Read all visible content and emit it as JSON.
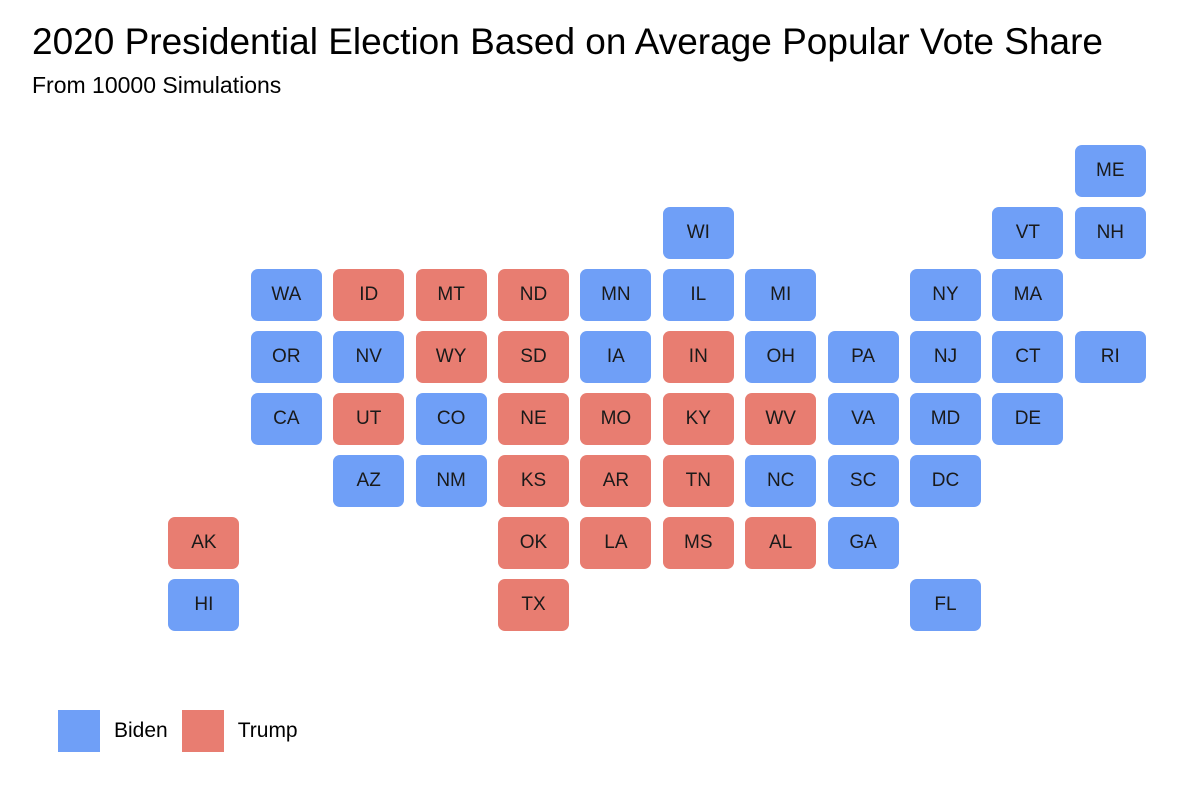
{
  "title": "2020 Presidential Election Based on Average Popular Vote Share",
  "subtitle": "From 10000 Simulations",
  "colors": {
    "Biden": "#6f9ff7",
    "Trump": "#e87d71"
  },
  "legend": [
    {
      "key": "Biden",
      "label": "Biden"
    },
    {
      "key": "Trump",
      "label": "Trump"
    }
  ],
  "states": [
    {
      "abbr": "ME",
      "winner": "Biden"
    },
    {
      "abbr": "WI",
      "winner": "Biden"
    },
    {
      "abbr": "VT",
      "winner": "Biden"
    },
    {
      "abbr": "NH",
      "winner": "Biden"
    },
    {
      "abbr": "WA",
      "winner": "Biden"
    },
    {
      "abbr": "ID",
      "winner": "Trump"
    },
    {
      "abbr": "MT",
      "winner": "Trump"
    },
    {
      "abbr": "ND",
      "winner": "Trump"
    },
    {
      "abbr": "MN",
      "winner": "Biden"
    },
    {
      "abbr": "IL",
      "winner": "Biden"
    },
    {
      "abbr": "MI",
      "winner": "Biden"
    },
    {
      "abbr": "NY",
      "winner": "Biden"
    },
    {
      "abbr": "MA",
      "winner": "Biden"
    },
    {
      "abbr": "OR",
      "winner": "Biden"
    },
    {
      "abbr": "NV",
      "winner": "Biden"
    },
    {
      "abbr": "WY",
      "winner": "Trump"
    },
    {
      "abbr": "SD",
      "winner": "Trump"
    },
    {
      "abbr": "IA",
      "winner": "Biden"
    },
    {
      "abbr": "IN",
      "winner": "Trump"
    },
    {
      "abbr": "OH",
      "winner": "Biden"
    },
    {
      "abbr": "PA",
      "winner": "Biden"
    },
    {
      "abbr": "NJ",
      "winner": "Biden"
    },
    {
      "abbr": "CT",
      "winner": "Biden"
    },
    {
      "abbr": "RI",
      "winner": "Biden"
    },
    {
      "abbr": "CA",
      "winner": "Biden"
    },
    {
      "abbr": "UT",
      "winner": "Trump"
    },
    {
      "abbr": "CO",
      "winner": "Biden"
    },
    {
      "abbr": "NE",
      "winner": "Trump"
    },
    {
      "abbr": "MO",
      "winner": "Trump"
    },
    {
      "abbr": "KY",
      "winner": "Trump"
    },
    {
      "abbr": "WV",
      "winner": "Trump"
    },
    {
      "abbr": "VA",
      "winner": "Biden"
    },
    {
      "abbr": "MD",
      "winner": "Biden"
    },
    {
      "abbr": "DE",
      "winner": "Biden"
    },
    {
      "abbr": "AZ",
      "winner": "Biden"
    },
    {
      "abbr": "NM",
      "winner": "Biden"
    },
    {
      "abbr": "KS",
      "winner": "Trump"
    },
    {
      "abbr": "AR",
      "winner": "Trump"
    },
    {
      "abbr": "TN",
      "winner": "Trump"
    },
    {
      "abbr": "NC",
      "winner": "Biden"
    },
    {
      "abbr": "SC",
      "winner": "Biden"
    },
    {
      "abbr": "DC",
      "winner": "Biden"
    },
    {
      "abbr": "AK",
      "winner": "Trump"
    },
    {
      "abbr": "OK",
      "winner": "Trump"
    },
    {
      "abbr": "LA",
      "winner": "Trump"
    },
    {
      "abbr": "MS",
      "winner": "Trump"
    },
    {
      "abbr": "AL",
      "winner": "Trump"
    },
    {
      "abbr": "GA",
      "winner": "Biden"
    },
    {
      "abbr": "HI",
      "winner": "Biden"
    },
    {
      "abbr": "TX",
      "winner": "Trump"
    },
    {
      "abbr": "FL",
      "winner": "Biden"
    }
  ]
}
